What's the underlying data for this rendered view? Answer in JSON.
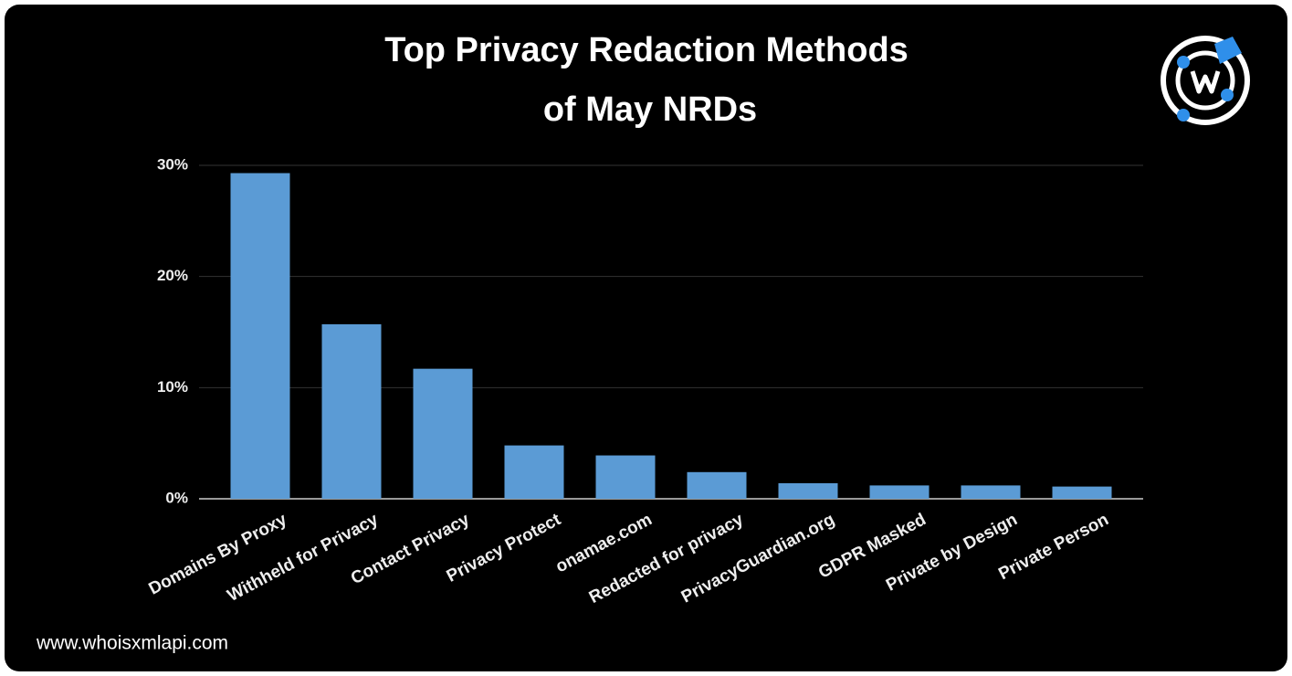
{
  "chart_data": {
    "type": "bar",
    "title": [
      "Top Privacy Redaction Methods",
      "of May NRDs"
    ],
    "categories": [
      "Domains By Proxy",
      "Withheld for Privacy",
      "Contact Privacy",
      "Privacy Protect",
      "onamae.com",
      "Redacted for privacy",
      "PrivacyGuardian.org",
      "GDPR Masked",
      "Private by Design",
      "Private Person"
    ],
    "values": [
      29.3,
      15.7,
      11.7,
      4.8,
      3.9,
      2.4,
      1.4,
      1.2,
      1.2,
      1.1
    ],
    "color": "#5b9bd5",
    "ylim": [
      0,
      30
    ],
    "yticks": [
      {
        "value": 0,
        "label": "0%"
      },
      {
        "value": 10,
        "label": "10%"
      },
      {
        "value": 20,
        "label": "20%"
      },
      {
        "value": 30,
        "label": "30%"
      }
    ],
    "grid": true
  },
  "footer": "www.whoisxmlapi.com"
}
